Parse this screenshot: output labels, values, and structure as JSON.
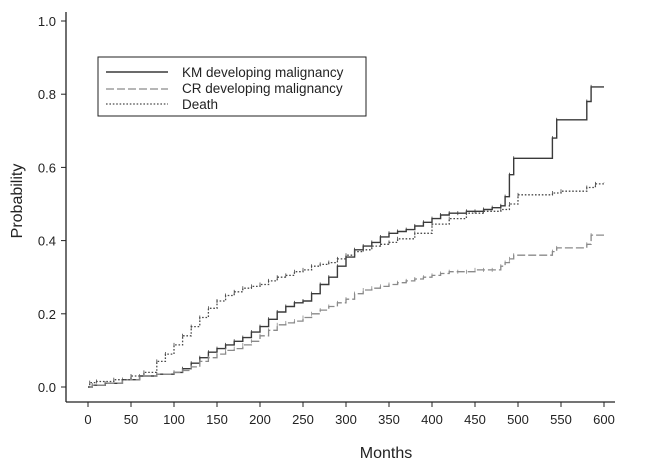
{
  "chart_data": {
    "type": "line",
    "xlabel": "Months",
    "ylabel": "Probability",
    "xlim": [
      0,
      600
    ],
    "ylim": [
      0,
      1.0
    ],
    "x_ticks": [
      "0",
      "50",
      "100",
      "150",
      "200",
      "250",
      "300",
      "350",
      "400",
      "450",
      "500",
      "550",
      "600"
    ],
    "y_ticks": [
      "0.0",
      "0.2",
      "0.4",
      "0.6",
      "0.8",
      "1.0"
    ],
    "grid": false,
    "legend_position": "top-left",
    "series": [
      {
        "name": "KM developing malignancy",
        "style": "solid",
        "color": "#3a3a3a",
        "x": [
          0,
          5,
          20,
          40,
          60,
          80,
          100,
          110,
          120,
          130,
          140,
          150,
          160,
          170,
          180,
          190,
          200,
          210,
          220,
          230,
          240,
          250,
          260,
          270,
          280,
          290,
          300,
          310,
          320,
          330,
          340,
          350,
          360,
          370,
          380,
          390,
          400,
          410,
          420,
          430,
          440,
          450,
          460,
          470,
          480,
          485,
          490,
          495,
          540,
          545,
          580,
          585,
          600
        ],
        "y": [
          0.0,
          0.005,
          0.01,
          0.02,
          0.03,
          0.035,
          0.04,
          0.05,
          0.065,
          0.08,
          0.095,
          0.105,
          0.115,
          0.125,
          0.135,
          0.15,
          0.165,
          0.185,
          0.205,
          0.22,
          0.23,
          0.235,
          0.255,
          0.28,
          0.3,
          0.33,
          0.355,
          0.375,
          0.385,
          0.395,
          0.41,
          0.42,
          0.425,
          0.43,
          0.44,
          0.45,
          0.46,
          0.47,
          0.475,
          0.475,
          0.48,
          0.48,
          0.485,
          0.49,
          0.495,
          0.52,
          0.58,
          0.625,
          0.68,
          0.73,
          0.78,
          0.82,
          0.82
        ]
      },
      {
        "name": "CR developing malignancy",
        "style": "dashed",
        "color": "#8a8a8a",
        "x": [
          0,
          5,
          20,
          40,
          60,
          80,
          100,
          110,
          120,
          130,
          140,
          150,
          160,
          170,
          180,
          190,
          200,
          210,
          220,
          230,
          240,
          250,
          260,
          270,
          280,
          290,
          300,
          310,
          320,
          330,
          340,
          350,
          360,
          370,
          380,
          390,
          400,
          410,
          420,
          430,
          440,
          450,
          460,
          470,
          480,
          485,
          490,
          495,
          540,
          545,
          580,
          585,
          600
        ],
        "y": [
          0.0,
          0.005,
          0.01,
          0.02,
          0.03,
          0.035,
          0.04,
          0.045,
          0.055,
          0.07,
          0.08,
          0.09,
          0.1,
          0.105,
          0.115,
          0.125,
          0.14,
          0.155,
          0.17,
          0.175,
          0.18,
          0.19,
          0.2,
          0.21,
          0.22,
          0.23,
          0.24,
          0.255,
          0.265,
          0.27,
          0.275,
          0.28,
          0.285,
          0.29,
          0.295,
          0.3,
          0.305,
          0.31,
          0.315,
          0.315,
          0.315,
          0.32,
          0.32,
          0.32,
          0.33,
          0.34,
          0.35,
          0.36,
          0.37,
          0.38,
          0.39,
          0.415,
          0.415
        ]
      },
      {
        "name": "Death",
        "style": "dotted",
        "color": "#4a4a4a",
        "x": [
          0,
          2,
          10,
          30,
          50,
          65,
          80,
          90,
          100,
          110,
          120,
          130,
          140,
          150,
          160,
          170,
          180,
          190,
          200,
          210,
          220,
          230,
          240,
          250,
          260,
          270,
          280,
          290,
          300,
          310,
          320,
          330,
          340,
          350,
          360,
          380,
          400,
          420,
          440,
          460,
          480,
          490,
          500,
          540,
          550,
          580,
          590,
          600
        ],
        "y": [
          0.0,
          0.012,
          0.015,
          0.02,
          0.03,
          0.04,
          0.07,
          0.09,
          0.115,
          0.14,
          0.165,
          0.19,
          0.215,
          0.235,
          0.25,
          0.26,
          0.27,
          0.275,
          0.28,
          0.29,
          0.3,
          0.305,
          0.315,
          0.32,
          0.33,
          0.335,
          0.34,
          0.35,
          0.36,
          0.37,
          0.375,
          0.385,
          0.39,
          0.395,
          0.405,
          0.42,
          0.445,
          0.46,
          0.475,
          0.48,
          0.485,
          0.5,
          0.525,
          0.53,
          0.535,
          0.545,
          0.555,
          0.56
        ]
      }
    ]
  }
}
